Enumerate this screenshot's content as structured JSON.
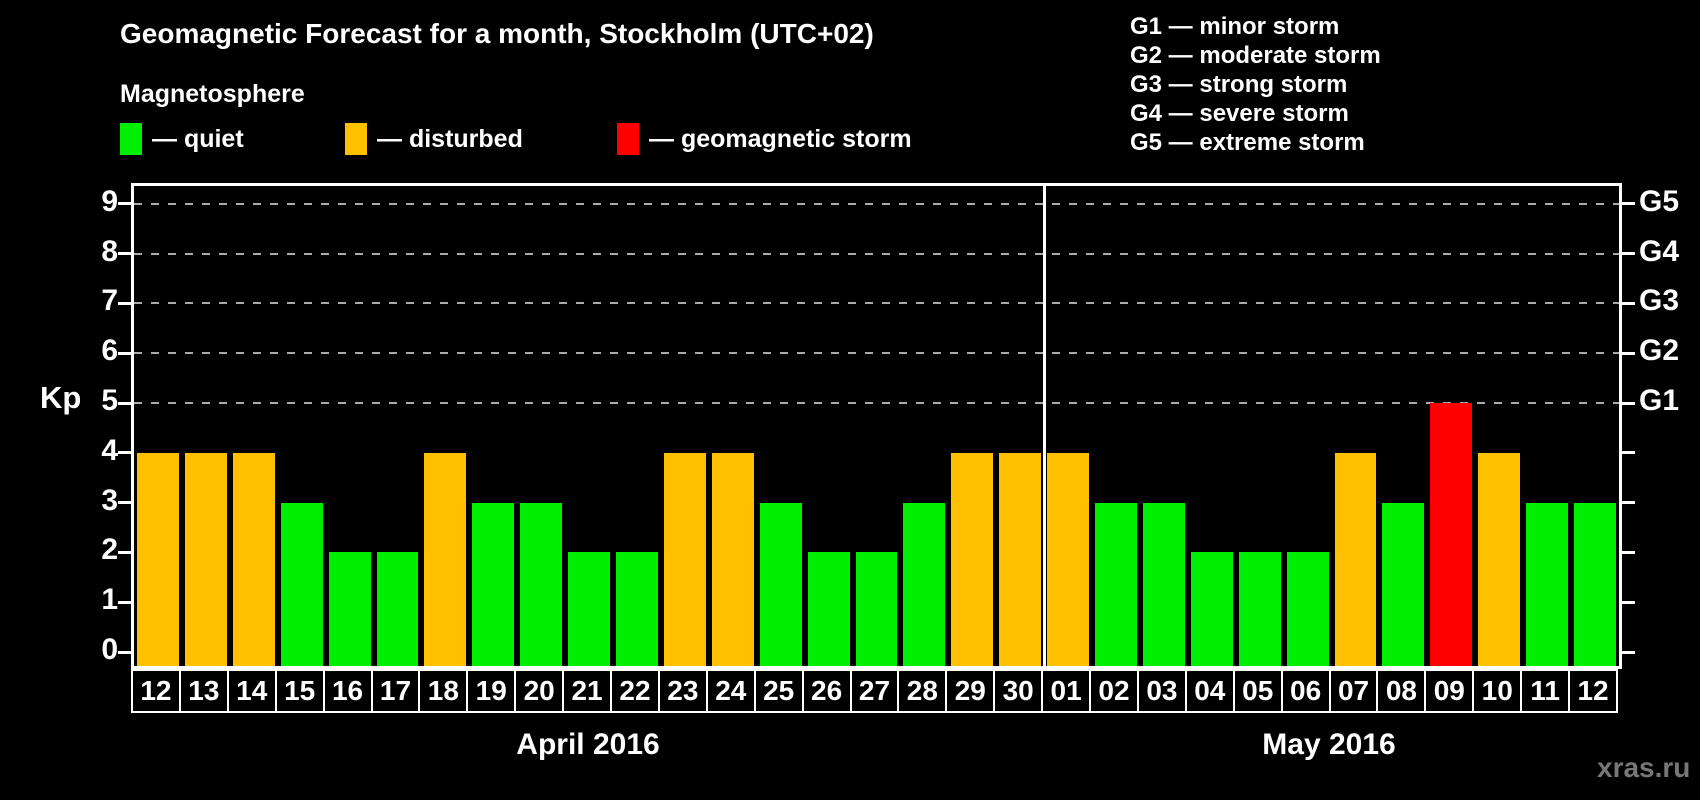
{
  "title": "Geomagnetic Forecast for a month, Stockholm (UTC+02)",
  "subtitle": "Magnetosphere",
  "legend": {
    "items": [
      {
        "label": "— quiet",
        "status": "quiet",
        "color": "#00ee00"
      },
      {
        "label": "— disturbed",
        "status": "disturbed",
        "color": "#ffc000"
      },
      {
        "label": "— geomagnetic storm",
        "status": "storm",
        "color": "#ff0000"
      }
    ]
  },
  "g_scale_legend": {
    "lines": [
      "G1 — minor storm",
      "G2 — moderate storm",
      "G3 — strong storm",
      "G4 — severe storm",
      "G5 — extreme storm"
    ]
  },
  "watermark": "xras.ru",
  "chart_data": {
    "type": "bar",
    "title": "Geomagnetic Forecast for a month, Stockholm (UTC+02)",
    "ylabel": "Kp",
    "ylim": [
      0,
      9
    ],
    "yticks": [
      0,
      1,
      2,
      3,
      4,
      5,
      6,
      7,
      8,
      9
    ],
    "gridlines_at": [
      5,
      6,
      7,
      8,
      9
    ],
    "grid": "dashed horizontal lines at storm levels Kp 5-9 only",
    "right_axis_labels": [
      {
        "value": 5,
        "label": "G1"
      },
      {
        "value": 6,
        "label": "G2"
      },
      {
        "value": 7,
        "label": "G3"
      },
      {
        "value": 8,
        "label": "G4"
      },
      {
        "value": 9,
        "label": "G5"
      }
    ],
    "months": [
      {
        "label": "April 2016",
        "days": 19
      },
      {
        "label": "May 2016",
        "days": 12
      }
    ],
    "categories": [
      "12",
      "13",
      "14",
      "15",
      "16",
      "17",
      "18",
      "19",
      "20",
      "21",
      "22",
      "23",
      "24",
      "25",
      "26",
      "27",
      "28",
      "29",
      "30",
      "01",
      "02",
      "03",
      "04",
      "05",
      "06",
      "07",
      "08",
      "09",
      "10",
      "11",
      "12"
    ],
    "values": [
      4,
      4,
      4,
      3,
      2,
      2,
      4,
      3,
      3,
      2,
      2,
      4,
      4,
      3,
      2,
      2,
      3,
      4,
      4,
      4,
      3,
      3,
      2,
      2,
      2,
      4,
      3,
      5,
      4,
      3,
      3
    ],
    "statuses": [
      "disturbed",
      "disturbed",
      "disturbed",
      "quiet",
      "quiet",
      "quiet",
      "disturbed",
      "quiet",
      "quiet",
      "quiet",
      "quiet",
      "disturbed",
      "disturbed",
      "quiet",
      "quiet",
      "quiet",
      "quiet",
      "disturbed",
      "disturbed",
      "disturbed",
      "quiet",
      "quiet",
      "quiet",
      "quiet",
      "quiet",
      "disturbed",
      "quiet",
      "storm",
      "disturbed",
      "quiet",
      "quiet"
    ],
    "status_colors": {
      "quiet": "#00ee00",
      "disturbed": "#ffc000",
      "storm": "#ff0000"
    }
  }
}
